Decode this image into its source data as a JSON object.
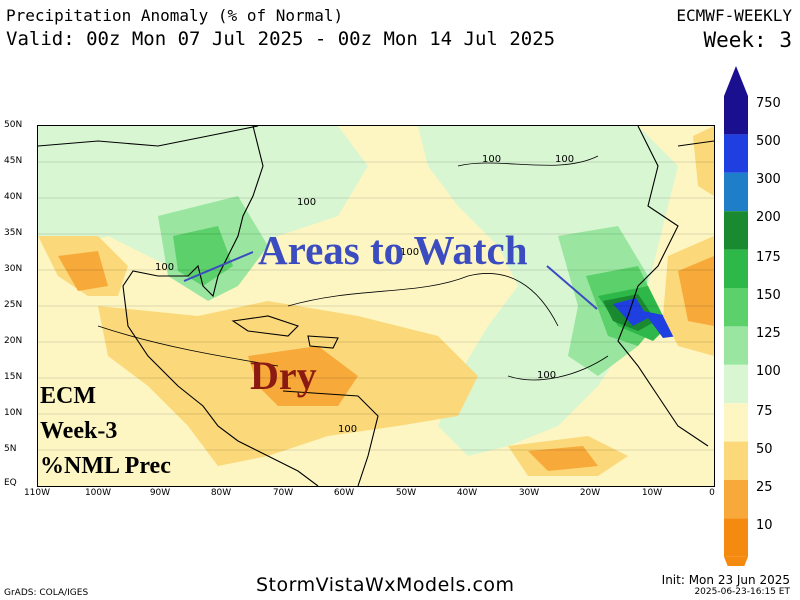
{
  "header": {
    "title": "Precipitation Anomaly (% of Normal)",
    "valid": "Valid: 00z Mon 07 Jul 2025 - 00z Mon 14 Jul 2025",
    "model": "ECMWF-WEEKLY",
    "week": "Week: 3"
  },
  "axes": {
    "lat_labels": [
      "50N",
      "45N",
      "40N",
      "35N",
      "30N",
      "25N",
      "20N",
      "15N",
      "10N",
      "5N",
      "EQ"
    ],
    "lon_labels": [
      "110W",
      "100W",
      "90W",
      "80W",
      "70W",
      "60W",
      "50W",
      "40W",
      "30W",
      "20W",
      "10W",
      "0"
    ]
  },
  "contour_labels": [
    "100",
    "100",
    "100",
    "100",
    "100",
    "100",
    "100"
  ],
  "annotations": {
    "watch": "Areas to Watch",
    "dry": "Dry",
    "ecm_lines": [
      "ECM",
      "Week-3",
      "%NML Prec"
    ]
  },
  "colorbar": {
    "labels": [
      "750",
      "500",
      "300",
      "200",
      "175",
      "150",
      "125",
      "100",
      "75",
      "50",
      "25",
      "10"
    ],
    "colors": [
      "#1a0f8f",
      "#1f3fe0",
      "#1e7fc8",
      "#1a8a30",
      "#2fb84a",
      "#5cd06a",
      "#9ae6a0",
      "#d8f6d2",
      "#fdf6c3",
      "#fbd97a",
      "#f7a93a",
      "#f48a10"
    ]
  },
  "footer": {
    "source": "GrADS: COLA/IGES",
    "site": "StormVistaWxModels.com",
    "init": "Init: Mon 23 Jun 2025",
    "stamp": "2025-06-23-16:15 ET"
  }
}
